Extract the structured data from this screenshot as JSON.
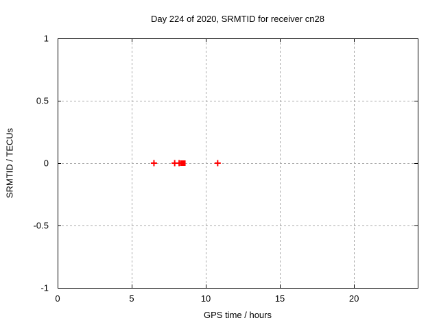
{
  "chart_data": {
    "type": "scatter",
    "title": "Day 224 of 2020, SRMTID for receiver cn28",
    "xlabel": "GPS time / hours",
    "ylabel": "SRMTID / TECUs",
    "xlim": [
      0,
      24.3
    ],
    "ylim": [
      -1,
      1
    ],
    "xticks": [
      0,
      5,
      10,
      15,
      20
    ],
    "xtick_labels": [
      "0",
      "5",
      "10",
      "15",
      "20"
    ],
    "yticks": [
      -1,
      -0.5,
      0,
      0.5,
      1
    ],
    "ytick_labels": [
      "-1",
      "-0.5",
      "0",
      "0.5",
      "1"
    ],
    "grid": true,
    "legend": "none",
    "series": [
      {
        "name": "SRMTID",
        "color": "#ff0000",
        "marker": "plus",
        "points": [
          {
            "x": 6.5,
            "y": 0,
            "marker": "plus"
          },
          {
            "x": 7.9,
            "y": 0,
            "marker": "plus"
          },
          {
            "x": 8.2,
            "y": 0,
            "marker": "plus"
          },
          {
            "x": 8.45,
            "y": 0,
            "marker": "square"
          },
          {
            "x": 10.8,
            "y": 0,
            "marker": "plus"
          }
        ]
      }
    ],
    "styles": {
      "background": "#ffffff",
      "axis_color": "#000000",
      "grid_color": "#a9a9a9",
      "text_color": "#000000"
    }
  }
}
